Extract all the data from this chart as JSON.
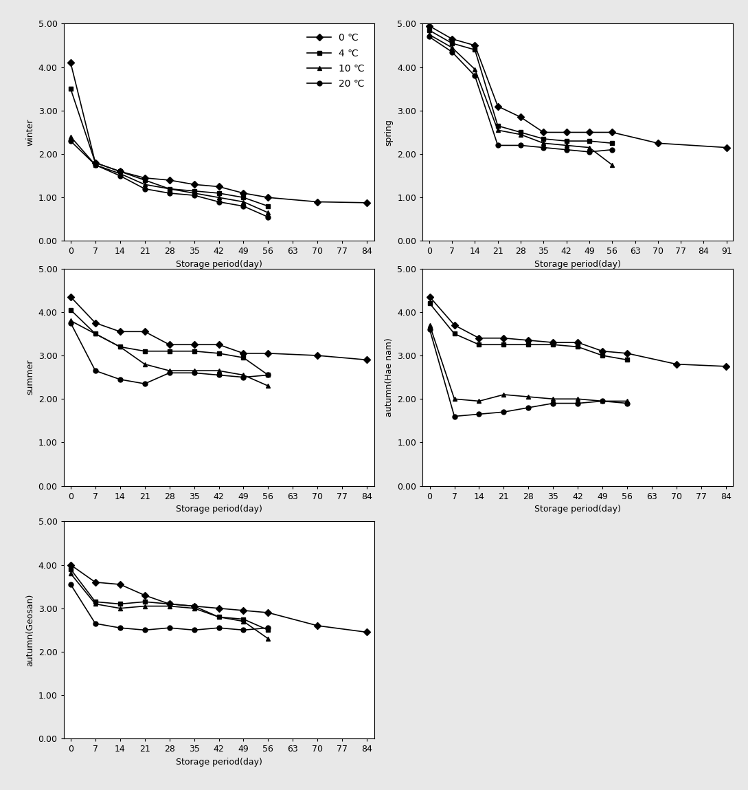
{
  "panels": [
    {
      "label": "winter",
      "x_ticks": [
        0,
        7,
        14,
        21,
        28,
        35,
        42,
        49,
        56,
        63,
        70,
        77,
        84
      ],
      "x_max": 84,
      "series": {
        "0C": [
          4.1,
          1.8,
          1.6,
          1.45,
          1.4,
          1.3,
          1.25,
          1.1,
          1.0,
          null,
          0.9,
          null,
          0.88
        ],
        "4C": [
          3.5,
          1.8,
          1.6,
          1.4,
          1.2,
          1.15,
          1.1,
          1.0,
          0.8,
          null,
          null,
          null,
          null
        ],
        "10C": [
          2.4,
          1.75,
          1.55,
          1.3,
          1.2,
          1.1,
          1.0,
          0.9,
          0.65,
          null,
          null,
          null,
          null
        ],
        "20C": [
          2.3,
          1.75,
          1.5,
          1.2,
          1.1,
          1.05,
          0.9,
          0.8,
          0.55,
          null,
          null,
          null,
          null
        ]
      }
    },
    {
      "label": "spring",
      "x_ticks": [
        0,
        7,
        14,
        21,
        28,
        35,
        42,
        49,
        56,
        63,
        70,
        77,
        84,
        91
      ],
      "x_max": 91,
      "series": {
        "0C": [
          4.95,
          4.65,
          4.5,
          3.1,
          2.85,
          2.5,
          2.5,
          2.5,
          2.5,
          null,
          2.25,
          null,
          null,
          2.15
        ],
        "4C": [
          4.85,
          4.55,
          4.4,
          2.65,
          2.5,
          2.35,
          2.3,
          2.3,
          2.25,
          null,
          null,
          null,
          null,
          null
        ],
        "10C": [
          4.75,
          4.45,
          3.95,
          2.55,
          2.45,
          2.25,
          2.2,
          2.15,
          1.75,
          null,
          null,
          null,
          null,
          null
        ],
        "20C": [
          4.7,
          4.35,
          3.8,
          2.2,
          2.2,
          2.15,
          2.1,
          2.05,
          2.1,
          null,
          null,
          null,
          null,
          null
        ]
      }
    },
    {
      "label": "summer",
      "x_ticks": [
        0,
        7,
        14,
        21,
        28,
        35,
        42,
        49,
        56,
        63,
        70,
        77,
        84
      ],
      "x_max": 84,
      "series": {
        "0C": [
          4.35,
          3.75,
          3.55,
          3.55,
          3.25,
          3.25,
          3.25,
          3.05,
          3.05,
          null,
          3.0,
          null,
          2.9
        ],
        "4C": [
          4.05,
          3.5,
          3.2,
          3.1,
          3.1,
          3.1,
          3.05,
          2.95,
          2.55,
          null,
          null,
          null,
          null
        ],
        "10C": [
          3.8,
          3.5,
          3.2,
          2.8,
          2.65,
          2.65,
          2.65,
          2.55,
          2.3,
          null,
          null,
          null,
          null
        ],
        "20C": [
          3.75,
          2.65,
          2.45,
          2.35,
          2.6,
          2.6,
          2.55,
          2.5,
          2.55,
          null,
          null,
          null,
          null
        ]
      }
    },
    {
      "label": "autumn(Hae nam)",
      "x_ticks": [
        0,
        7,
        14,
        21,
        28,
        35,
        42,
        49,
        56,
        63,
        70,
        77,
        84
      ],
      "x_max": 84,
      "series": {
        "0C": [
          4.35,
          3.7,
          3.4,
          3.4,
          3.35,
          3.3,
          3.3,
          3.1,
          3.05,
          null,
          2.8,
          null,
          2.75
        ],
        "4C": [
          4.2,
          3.5,
          3.25,
          3.25,
          3.25,
          3.25,
          3.2,
          3.0,
          2.9,
          null,
          null,
          null,
          null
        ],
        "10C": [
          3.7,
          2.0,
          1.95,
          2.1,
          2.05,
          2.0,
          2.0,
          1.95,
          1.95,
          null,
          null,
          null,
          null
        ],
        "20C": [
          3.6,
          1.6,
          1.65,
          1.7,
          1.8,
          1.9,
          1.9,
          1.95,
          1.9,
          null,
          null,
          null,
          null
        ]
      }
    },
    {
      "label": "autumn(Geosan)",
      "x_ticks": [
        0,
        7,
        14,
        21,
        28,
        35,
        42,
        49,
        56,
        63,
        70,
        77,
        84
      ],
      "x_max": 84,
      "series": {
        "0C": [
          4.0,
          3.6,
          3.55,
          3.3,
          3.1,
          3.05,
          3.0,
          2.95,
          2.9,
          null,
          2.6,
          null,
          2.45
        ],
        "4C": [
          3.9,
          3.15,
          3.1,
          3.15,
          3.1,
          3.05,
          2.8,
          2.75,
          2.5,
          null,
          null,
          null,
          null
        ],
        "10C": [
          3.8,
          3.1,
          3.0,
          3.05,
          3.05,
          3.0,
          2.8,
          2.7,
          2.3,
          null,
          null,
          null,
          null
        ],
        "20C": [
          3.55,
          2.65,
          2.55,
          2.5,
          2.55,
          2.5,
          2.55,
          2.5,
          2.55,
          null,
          null,
          null,
          null
        ]
      }
    }
  ],
  "legend_labels": [
    "0 ℃",
    "4 ℃",
    "10 ℃",
    "20 ℃"
  ],
  "markers": [
    "D",
    "s",
    "^",
    "o"
  ],
  "xlabel": "Storage period(day)",
  "ylim": [
    0.0,
    5.0
  ],
  "yticks": [
    0.0,
    1.0,
    2.0,
    3.0,
    4.0,
    5.0
  ],
  "ytick_labels": [
    "0.00",
    "1.00",
    "2.00",
    "3.00",
    "4.00",
    "5.00"
  ],
  "marker_size": 5,
  "line_width": 1.2,
  "font_size": 9,
  "fig_bg_color": "#e8e8e8",
  "panel_bg_color": "#ffffff"
}
